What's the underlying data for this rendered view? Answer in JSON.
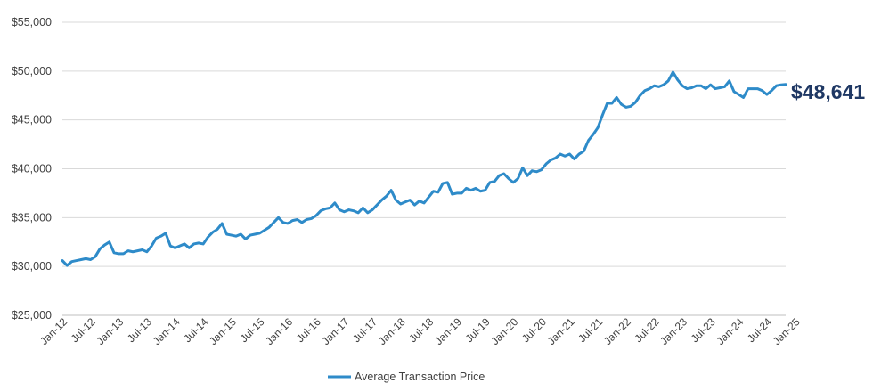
{
  "chart_data": {
    "type": "line",
    "title": "",
    "xlabel": "",
    "ylabel": "",
    "ylim": [
      25000,
      55000
    ],
    "grid": true,
    "legend_position": "bottom",
    "y_ticks": [
      "$25,000",
      "$30,000",
      "$35,000",
      "$40,000",
      "$45,000",
      "$50,000",
      "$55,000"
    ],
    "y_tick_values": [
      25000,
      30000,
      35000,
      40000,
      45000,
      50000,
      55000
    ],
    "x_ticks": [
      "Jan-12",
      "Jul-12",
      "Jan-13",
      "Jul-13",
      "Jan-14",
      "Jul-14",
      "Jan-15",
      "Jul-15",
      "Jan-16",
      "Jul-16",
      "Jan-17",
      "Jul-17",
      "Jan-18",
      "Jul-18",
      "Jan-19",
      "Jul-19",
      "Jan-20",
      "Jul-20",
      "Jan-21",
      "Jul-21",
      "Jan-22",
      "Jul-22",
      "Jan-23",
      "Jul-23",
      "Jan-24",
      "Jul-24",
      "Jan-25"
    ],
    "x_start": "Jan-12",
    "x_end": "Jan-25",
    "end_label": "$48,641",
    "series": [
      {
        "name": "Average Transaction Price",
        "color": "#2e8bc9",
        "values": [
          30600,
          30100,
          30500,
          30600,
          30700,
          30800,
          30700,
          31000,
          31800,
          32200,
          32500,
          31400,
          31300,
          31300,
          31600,
          31500,
          31600,
          31700,
          31500,
          32100,
          32900,
          33100,
          33400,
          32100,
          31900,
          32100,
          32300,
          31900,
          32300,
          32400,
          32300,
          33000,
          33500,
          33800,
          34400,
          33300,
          33200,
          33100,
          33300,
          32800,
          33200,
          33300,
          33400,
          33700,
          34000,
          34500,
          35000,
          34500,
          34400,
          34700,
          34800,
          34500,
          34800,
          34900,
          35200,
          35700,
          35900,
          36000,
          36500,
          35800,
          35600,
          35800,
          35700,
          35500,
          36000,
          35500,
          35800,
          36300,
          36800,
          37200,
          37800,
          36800,
          36400,
          36600,
          36800,
          36300,
          36700,
          36500,
          37100,
          37700,
          37600,
          38500,
          38600,
          37400,
          37500,
          37500,
          38000,
          37800,
          38000,
          37700,
          37800,
          38600,
          38700,
          39300,
          39500,
          39000,
          38600,
          39000,
          40100,
          39300,
          39800,
          39700,
          39900,
          40500,
          40900,
          41100,
          41500,
          41300,
          41500,
          41000,
          41500,
          41800,
          42900,
          43500,
          44200,
          45500,
          46700,
          46700,
          47300,
          46600,
          46300,
          46400,
          46800,
          47500,
          48000,
          48200,
          48500,
          48400,
          48600,
          49000,
          49900,
          49100,
          48500,
          48200,
          48300,
          48500,
          48500,
          48200,
          48600,
          48200,
          48300,
          48400,
          49000,
          47900,
          47600,
          47300,
          48200,
          48200,
          48200,
          48000,
          47600,
          48000,
          48500,
          48600,
          48641
        ]
      }
    ]
  }
}
